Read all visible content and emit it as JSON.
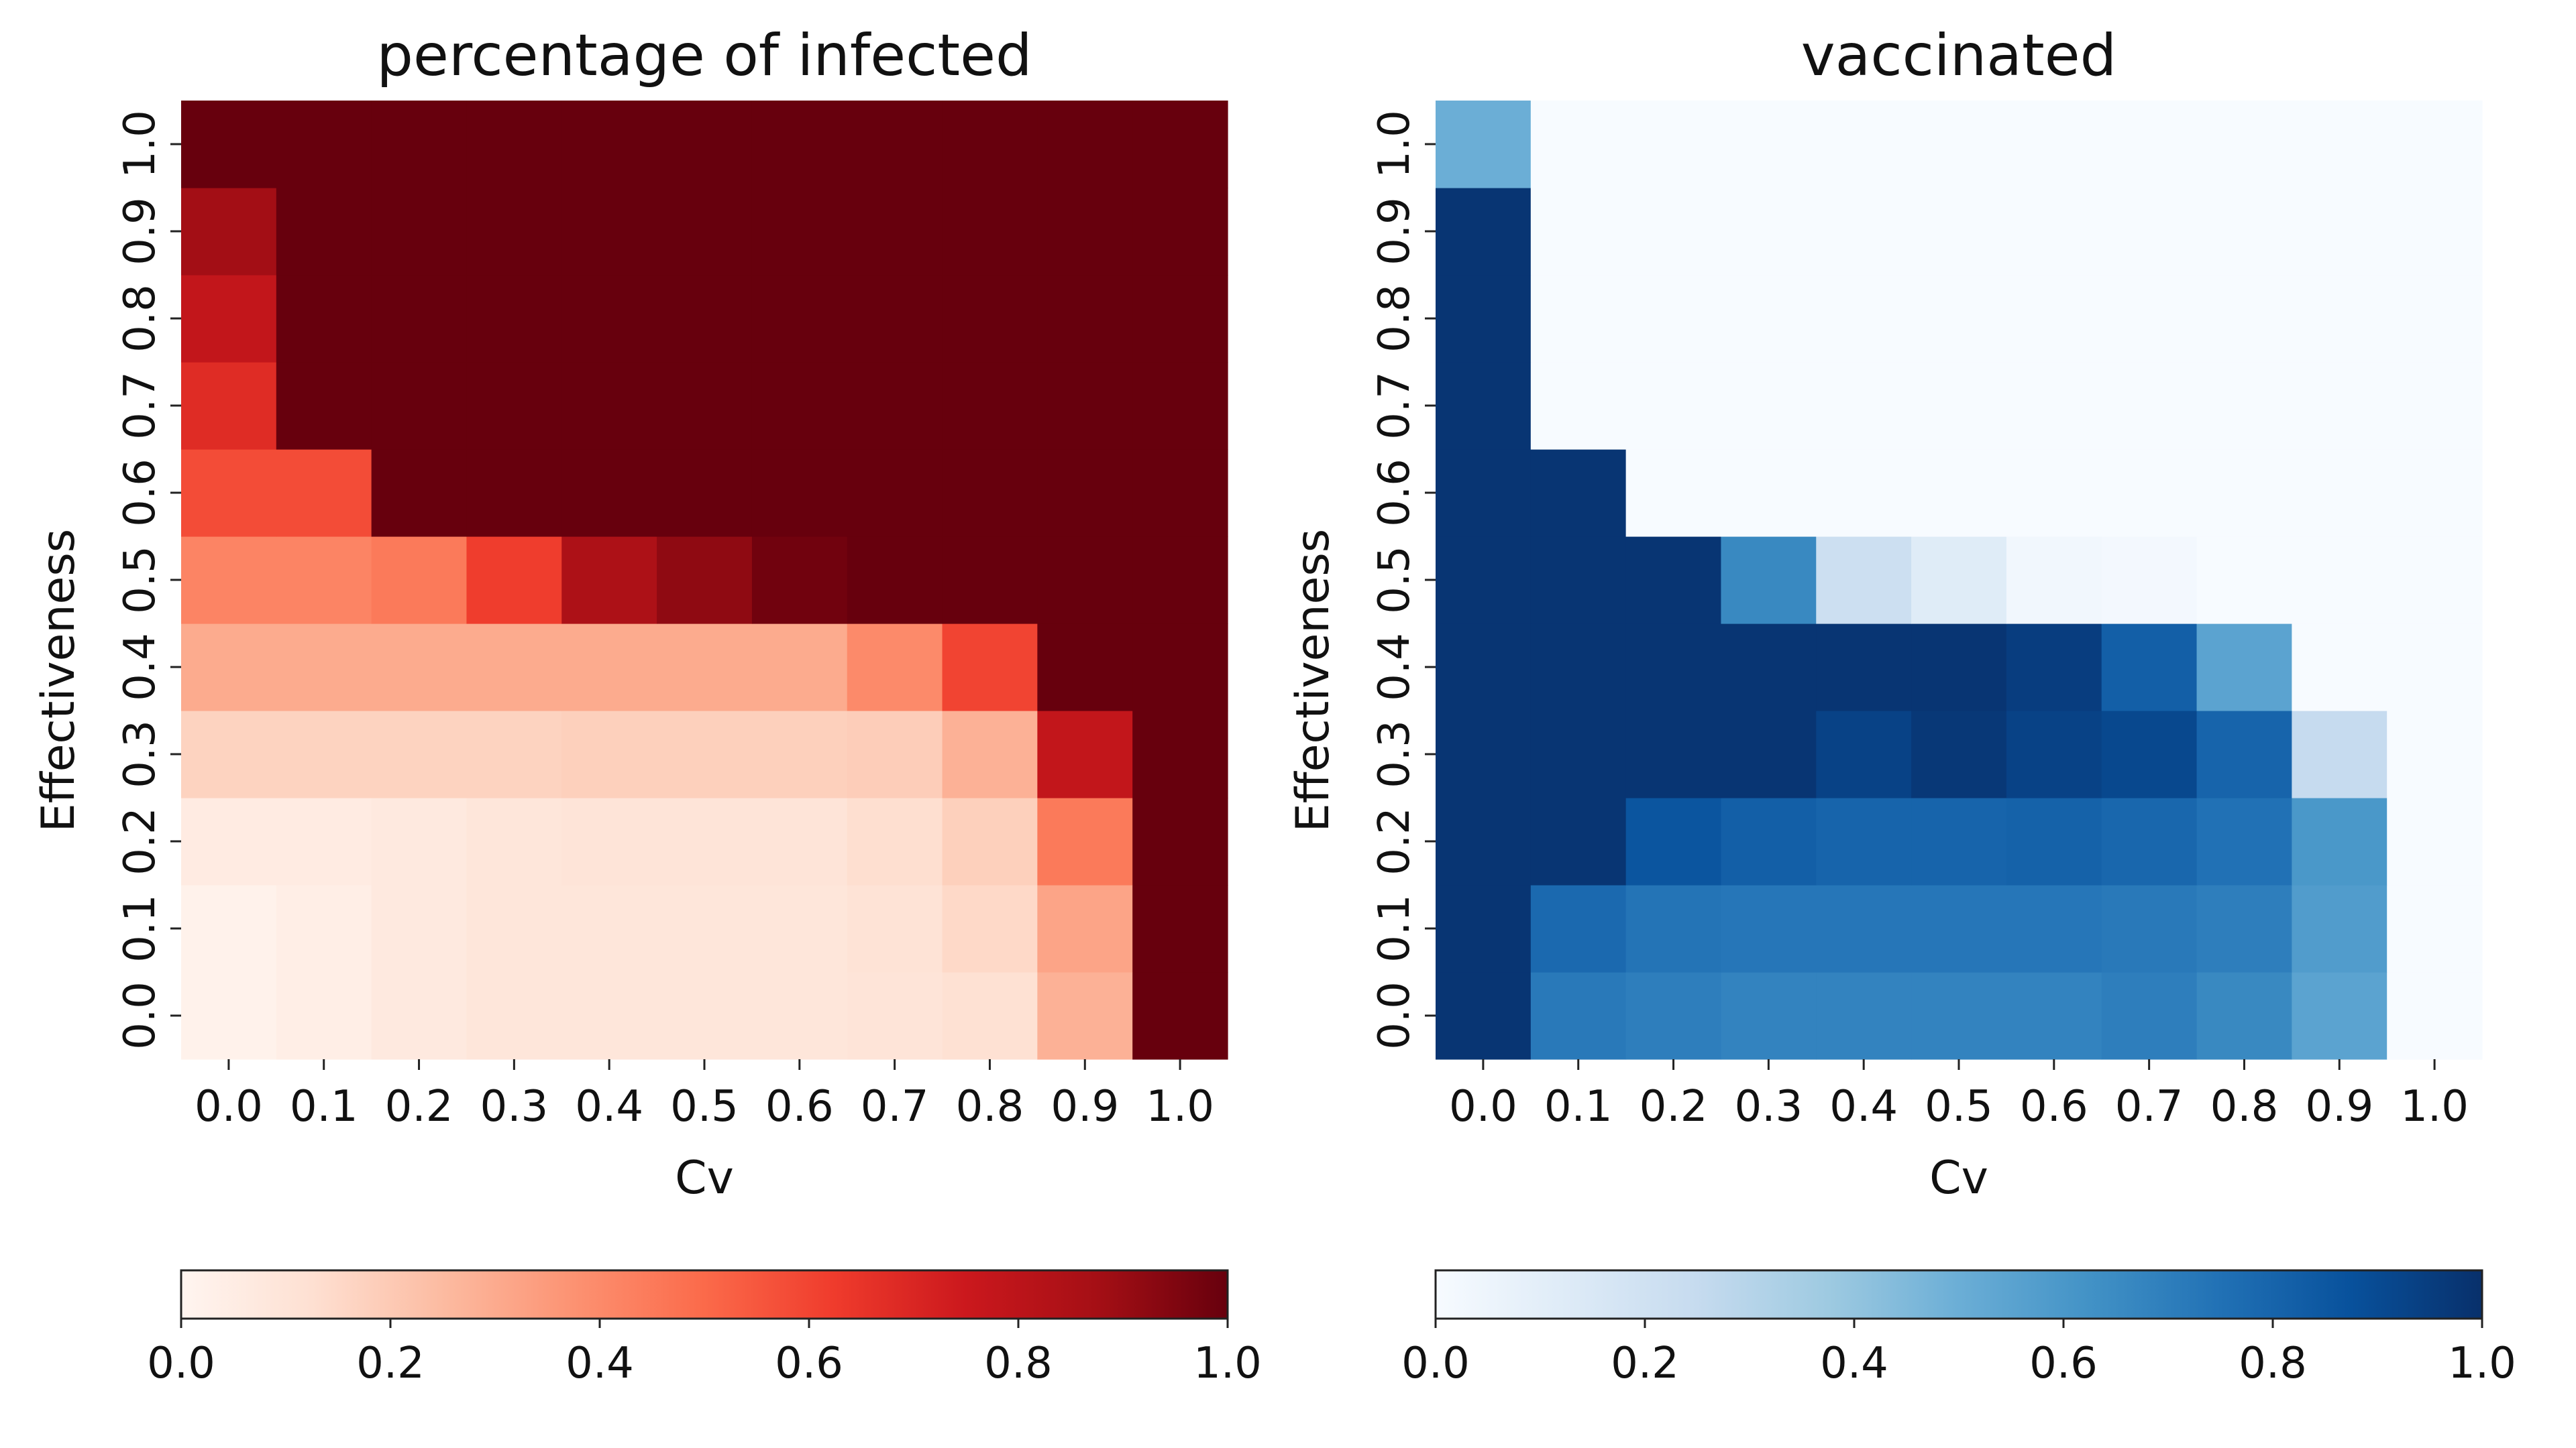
{
  "chart_data": [
    {
      "type": "heatmap",
      "title": "percentage of infected",
      "xlabel": "Cv",
      "ylabel": "Effectiveness",
      "x": [
        "0.0",
        "0.1",
        "0.2",
        "0.3",
        "0.4",
        "0.5",
        "0.6",
        "0.7",
        "0.8",
        "0.9",
        "1.0"
      ],
      "y": [
        "0.0",
        "0.1",
        "0.2",
        "0.3",
        "0.4",
        "0.5",
        "0.6",
        "0.7",
        "0.8",
        "0.9",
        "1.0"
      ],
      "colormap": "Reds",
      "colorbar": {
        "orientation": "horizontal",
        "placement": "bottom",
        "range": [
          0,
          1
        ],
        "ticks": [
          "0.0",
          "0.2",
          "0.4",
          "0.6",
          "0.8",
          "1.0"
        ]
      },
      "values": [
        [
          0.02,
          0.04,
          0.07,
          0.09,
          0.09,
          0.09,
          0.09,
          0.1,
          0.12,
          0.28,
          1.0
        ],
        [
          0.02,
          0.04,
          0.07,
          0.09,
          0.09,
          0.09,
          0.09,
          0.11,
          0.15,
          0.32,
          1.0
        ],
        [
          0.06,
          0.06,
          0.07,
          0.09,
          0.1,
          0.1,
          0.1,
          0.13,
          0.18,
          0.45,
          1.0
        ],
        [
          0.17,
          0.17,
          0.17,
          0.17,
          0.18,
          0.18,
          0.18,
          0.19,
          0.28,
          0.78,
          1.0
        ],
        [
          0.3,
          0.3,
          0.3,
          0.3,
          0.3,
          0.3,
          0.3,
          0.4,
          0.6,
          1.0,
          1.0
        ],
        [
          0.42,
          0.42,
          0.45,
          0.62,
          0.85,
          0.92,
          0.98,
          1.0,
          1.0,
          1.0,
          1.0
        ],
        [
          0.58,
          0.58,
          1.0,
          1.0,
          1.0,
          1.0,
          1.0,
          1.0,
          1.0,
          1.0,
          1.0
        ],
        [
          0.68,
          1.0,
          1.0,
          1.0,
          1.0,
          1.0,
          1.0,
          1.0,
          1.0,
          1.0,
          1.0
        ],
        [
          0.78,
          1.0,
          1.0,
          1.0,
          1.0,
          1.0,
          1.0,
          1.0,
          1.0,
          1.0,
          1.0
        ],
        [
          0.88,
          1.0,
          1.0,
          1.0,
          1.0,
          1.0,
          1.0,
          1.0,
          1.0,
          1.0,
          1.0
        ],
        [
          1.0,
          1.0,
          1.0,
          1.0,
          1.0,
          1.0,
          1.0,
          1.0,
          1.0,
          1.0,
          1.0
        ]
      ]
    },
    {
      "type": "heatmap",
      "title": "vaccinated",
      "xlabel": "Cv",
      "ylabel": "Effectiveness",
      "x": [
        "0.0",
        "0.1",
        "0.2",
        "0.3",
        "0.4",
        "0.5",
        "0.6",
        "0.7",
        "0.8",
        "0.9",
        "1.0"
      ],
      "y": [
        "0.0",
        "0.1",
        "0.2",
        "0.3",
        "0.4",
        "0.5",
        "0.6",
        "0.7",
        "0.8",
        "0.9",
        "1.0"
      ],
      "colormap": "Blues",
      "colorbar": {
        "orientation": "horizontal",
        "placement": "bottom",
        "range": [
          0,
          1
        ],
        "ticks": [
          "0.0",
          "0.2",
          "0.4",
          "0.6",
          "0.8",
          "1.0"
        ]
      },
      "values": [
        [
          0.98,
          0.72,
          0.7,
          0.68,
          0.68,
          0.68,
          0.68,
          0.7,
          0.66,
          0.55,
          0.0
        ],
        [
          0.98,
          0.78,
          0.74,
          0.73,
          0.73,
          0.73,
          0.73,
          0.72,
          0.7,
          0.58,
          0.0
        ],
        [
          0.98,
          0.98,
          0.86,
          0.82,
          0.8,
          0.8,
          0.81,
          0.79,
          0.75,
          0.6,
          0.0
        ],
        [
          0.98,
          0.98,
          0.98,
          0.98,
          0.93,
          0.97,
          0.93,
          0.91,
          0.8,
          0.25,
          0.0
        ],
        [
          0.98,
          0.98,
          0.98,
          0.98,
          0.98,
          0.98,
          0.95,
          0.82,
          0.55,
          0.0,
          0.0
        ],
        [
          0.98,
          0.98,
          0.98,
          0.66,
          0.22,
          0.12,
          0.03,
          0.02,
          0.0,
          0.0,
          0.0
        ],
        [
          0.98,
          0.98,
          0.0,
          0.0,
          0.0,
          0.0,
          0.0,
          0.0,
          0.0,
          0.0,
          0.0
        ],
        [
          0.98,
          0.0,
          0.0,
          0.0,
          0.0,
          0.0,
          0.0,
          0.0,
          0.0,
          0.0,
          0.0
        ],
        [
          0.98,
          0.0,
          0.0,
          0.0,
          0.0,
          0.0,
          0.0,
          0.0,
          0.0,
          0.0,
          0.0
        ],
        [
          0.98,
          0.0,
          0.0,
          0.0,
          0.0,
          0.0,
          0.0,
          0.0,
          0.0,
          0.0,
          0.0
        ],
        [
          0.5,
          0.0,
          0.0,
          0.0,
          0.0,
          0.0,
          0.0,
          0.0,
          0.0,
          0.0,
          0.0
        ]
      ]
    }
  ]
}
